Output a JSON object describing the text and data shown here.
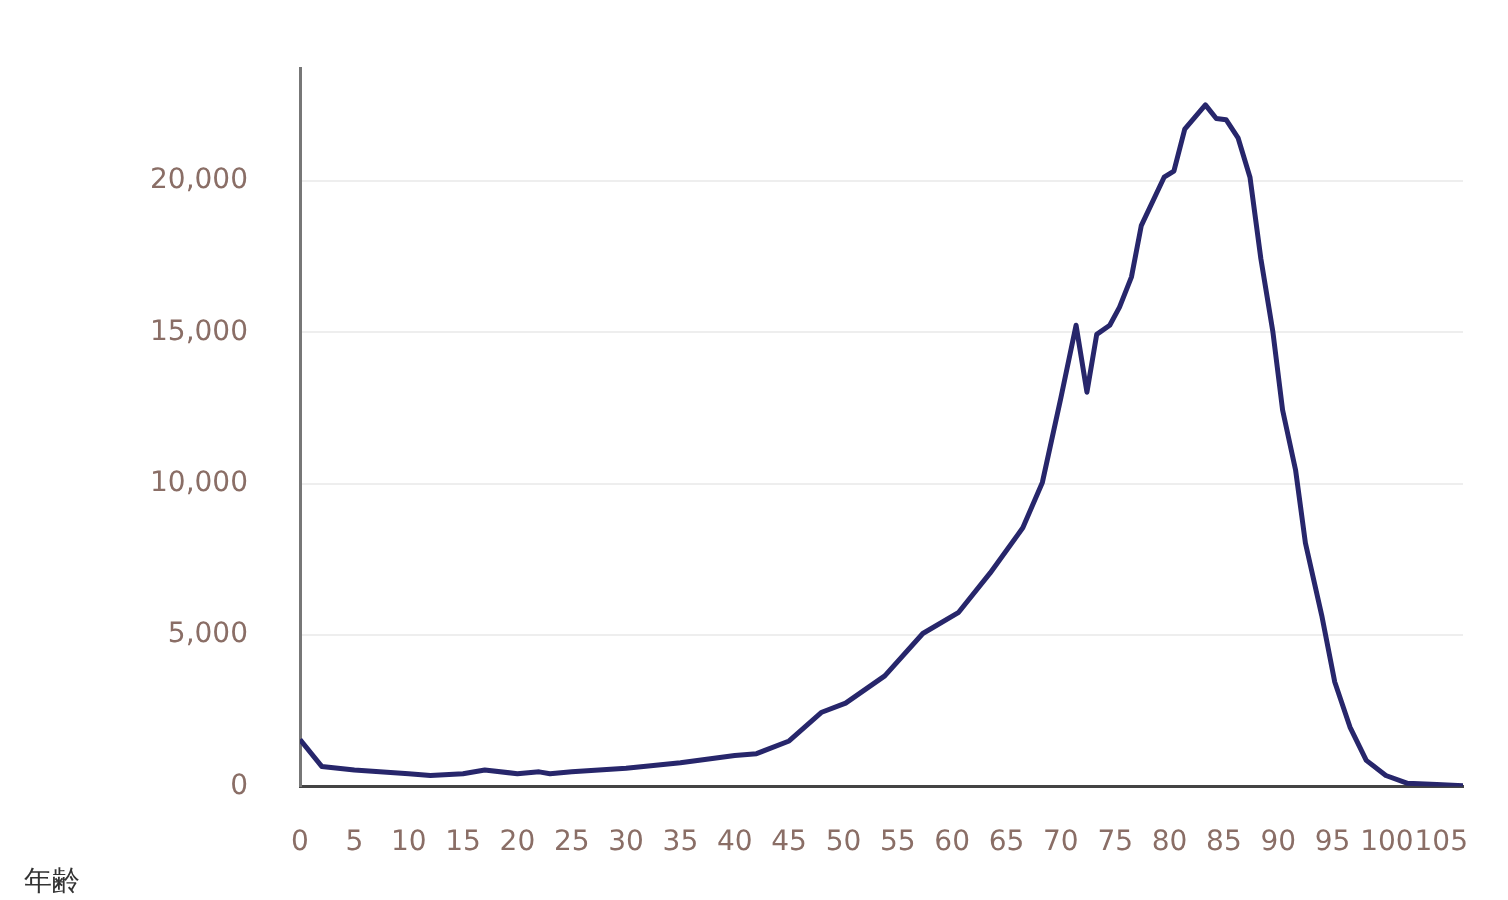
{
  "chart_data": {
    "type": "line",
    "xlabel": "年齢",
    "color": "#27266b",
    "grid": "y",
    "marker": "none",
    "line_style": "solid",
    "x": [
      0,
      2,
      5,
      10,
      12,
      15,
      17,
      20,
      22,
      23,
      25,
      30,
      35,
      40,
      42,
      45,
      48,
      50.2,
      53.8,
      57.3,
      60.6,
      63.5,
      66.5,
      68.3,
      70,
      71.4,
      72.4,
      73.3,
      74.5,
      75.4,
      76.5,
      77.4,
      79.5,
      80.4,
      81.4,
      83.3,
      84.3,
      85.2,
      86.3,
      87.4,
      88.4,
      89.5,
      90.4,
      91.6,
      92.5,
      94,
      95.2,
      96.6,
      98.1,
      99.9,
      101.9,
      104.6,
      107
    ],
    "values": [
      1550,
      660,
      540,
      420,
      360,
      420,
      540,
      420,
      480,
      420,
      480,
      600,
      780,
      1020,
      1080,
      1500,
      2450,
      2750,
      3650,
      5050,
      5750,
      7050,
      8540,
      10040,
      12830,
      15230,
      13020,
      14930,
      15230,
      15830,
      16830,
      18520,
      20120,
      20320,
      21710,
      22510,
      22060,
      22020,
      21420,
      20120,
      17430,
      15030,
      12430,
      10440,
      8040,
      5650,
      3450,
      1960,
      860,
      360,
      100,
      60,
      20
    ],
    "xlim": [
      0,
      107
    ],
    "xticks": [
      0,
      5,
      10,
      15,
      20,
      25,
      30,
      35,
      40,
      45,
      50,
      55,
      60,
      65,
      70,
      75,
      80,
      85,
      90,
      95,
      100,
      105
    ],
    "ylim": [
      0,
      23700
    ],
    "yticks": [
      0,
      {
        "value": 5000,
        "label": "5,000"
      },
      {
        "value": 10000,
        "label": "10,000"
      },
      {
        "value": 15000,
        "label": "15,000"
      },
      {
        "value": 20000,
        "label": "20,000"
      }
    ]
  }
}
